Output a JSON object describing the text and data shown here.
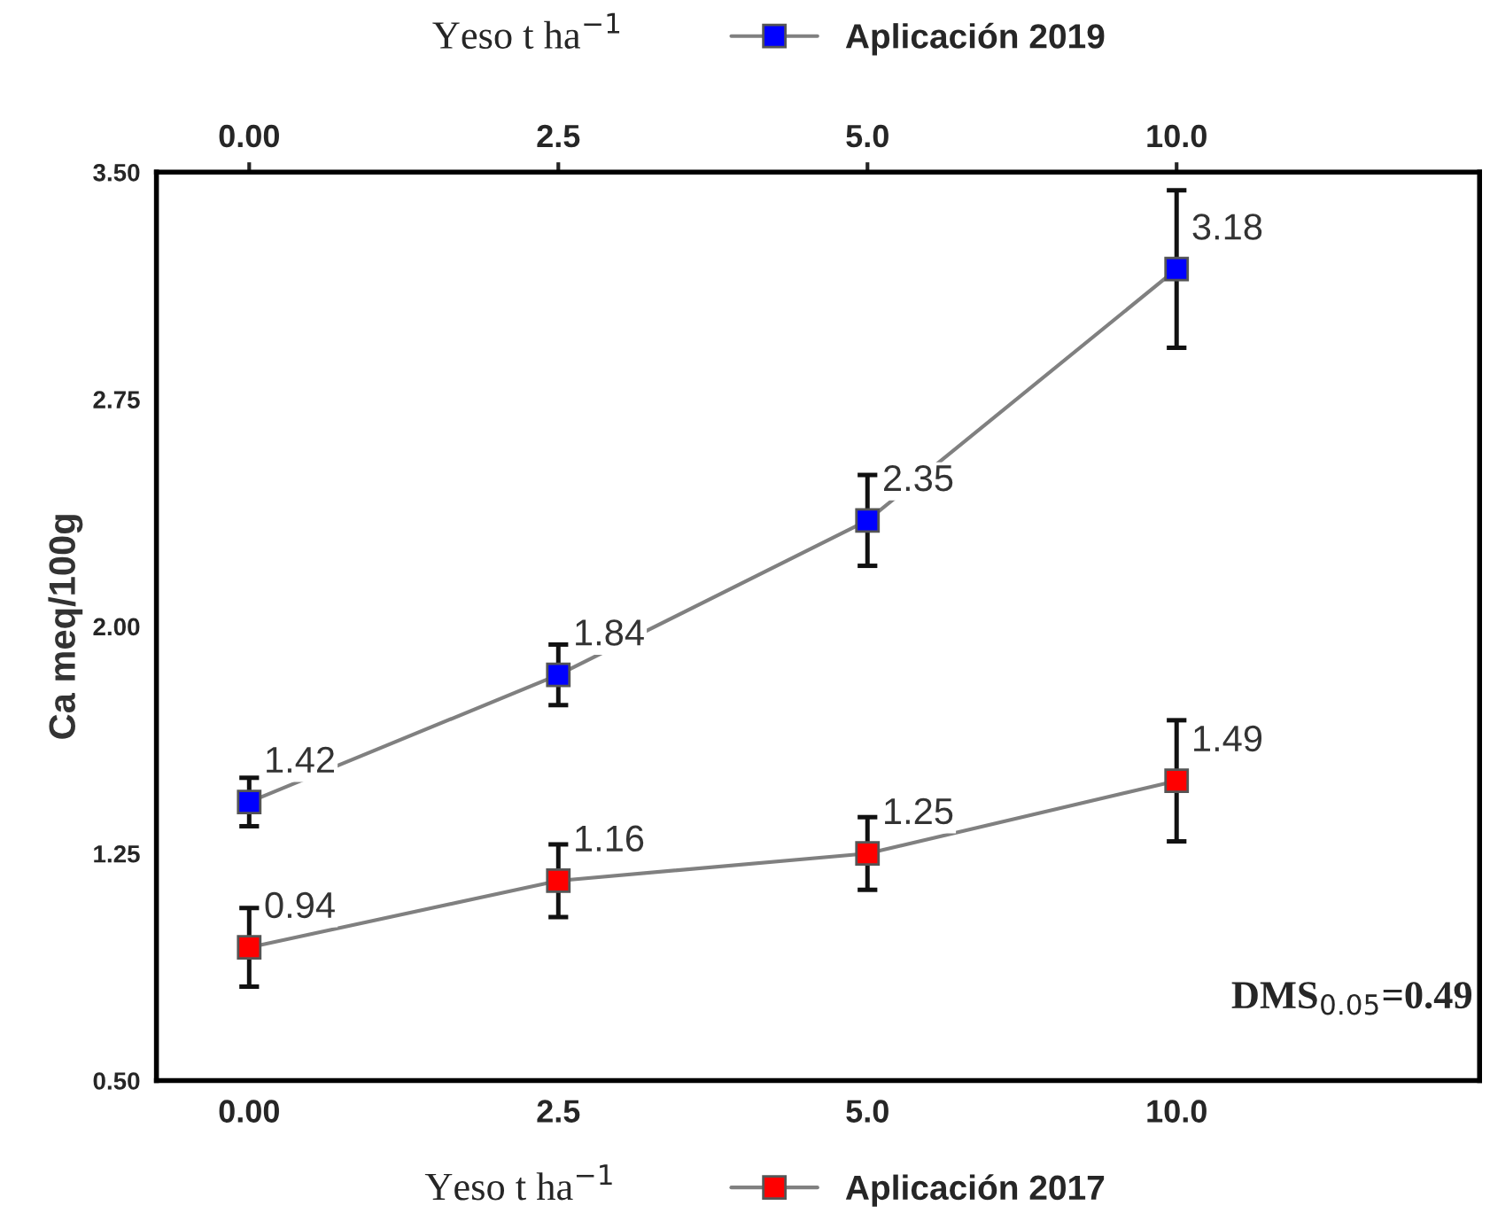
{
  "chart_data": {
    "type": "line",
    "categories": [
      "0.00",
      "2.5",
      "5.0",
      "10.0"
    ],
    "xlabel": "Yeso t ha$^{−1}$",
    "x2label": "Yeso t ha$^{−1}$",
    "ylabel": "Ca meq/100g",
    "ylim": [
      0.5,
      3.5
    ],
    "yticks": [
      {
        "value": 0.5,
        "label": "0.50"
      },
      1.25,
      {
        "value": 2,
        "label": "2.00"
      },
      2.75,
      {
        "value": 3.5,
        "label": "3.50"
      }
    ],
    "series": [
      {
        "name": "Aplicación 2019",
        "color": "#0000ff",
        "values": [
          1.42,
          1.84,
          2.35,
          3.18
        ],
        "errors": [
          0.08,
          0.1,
          0.15,
          0.26
        ]
      },
      {
        "name": "Aplicación 2017",
        "color": "#ff0000",
        "values": [
          0.94,
          1.16,
          1.25,
          1.49
        ],
        "errors": [
          0.13,
          0.12,
          0.12,
          0.2
        ]
      }
    ],
    "data_labels": true,
    "marker": "square",
    "line_style": "solid",
    "grid": false,
    "legend": "top right",
    "annotations": [
      "DMS$_{0.05}$=0.49"
    ]
  }
}
